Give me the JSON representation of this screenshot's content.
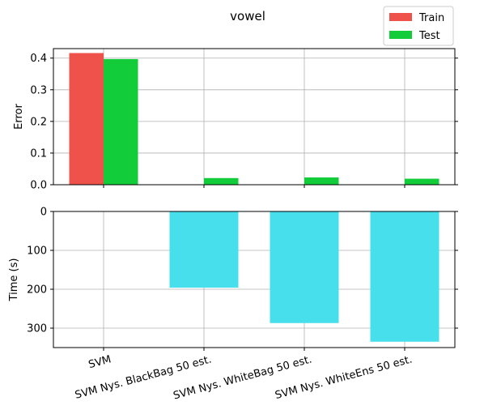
{
  "chart_data": [
    {
      "type": "bar",
      "title": "vowel",
      "ylabel": "Error",
      "categories": [
        "SVM",
        "SVM Nys. BlackBag 50 est.",
        "SVM Nys. WhiteBag 50 est.",
        "SVM Nys. WhiteEns 50 est."
      ],
      "ylim": [
        0,
        0.43
      ],
      "yticks": [
        0.0,
        0.1,
        0.2,
        0.3,
        0.4
      ],
      "ytick_labels": [
        "0.0",
        "0.1",
        "0.2",
        "0.3",
        "0.4"
      ],
      "grid": true,
      "legend_position": "top-right",
      "series": [
        {
          "name": "Train",
          "color": "#ef524a",
          "values": [
            0.416,
            0.0,
            0.0,
            0.0
          ]
        },
        {
          "name": "Test",
          "color": "#12cc3a",
          "values": [
            0.397,
            0.021,
            0.023,
            0.019
          ]
        }
      ]
    },
    {
      "type": "bar",
      "ylabel": "Time (s)",
      "categories": [
        "SVM",
        "SVM Nys. BlackBag 50 est.",
        "SVM Nys. WhiteBag 50 est.",
        "SVM Nys. WhiteEns 50 est."
      ],
      "ylim": [
        0,
        350
      ],
      "y_inverted": true,
      "yticks": [
        0,
        100,
        200,
        300
      ],
      "ytick_labels": [
        "0",
        "100",
        "200",
        "300"
      ],
      "grid": true,
      "series": [
        {
          "color": "#48dfec",
          "values": [
            0,
            196,
            287,
            335
          ]
        }
      ]
    }
  ]
}
